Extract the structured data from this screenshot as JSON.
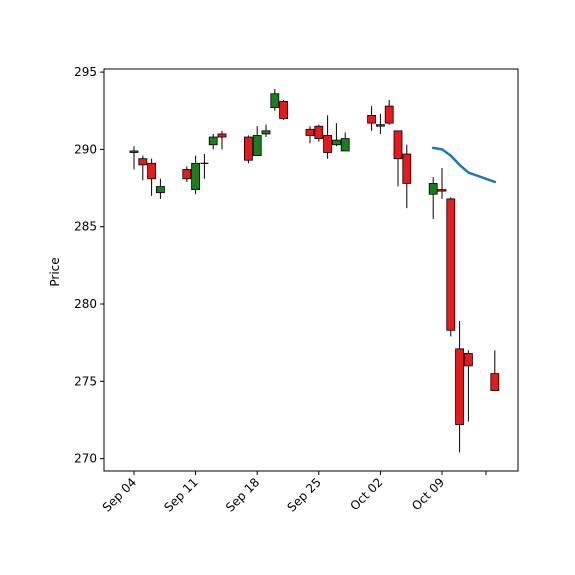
{
  "chart_data": {
    "type": "candlestick",
    "ylabel": "Price",
    "xlabel": "",
    "ylim": [
      269.2,
      295.2
    ],
    "y_ticks": [
      270,
      275,
      280,
      285,
      290,
      295
    ],
    "x_ticks": [
      {
        "label": "Sep 04",
        "date": "2018-09-04"
      },
      {
        "label": "Sep 11",
        "date": "2018-09-11"
      },
      {
        "label": "Sep 18",
        "date": "2018-09-18"
      },
      {
        "label": "Sep 25",
        "date": "2018-09-25"
      },
      {
        "label": "Oct 02",
        "date": "2018-10-02"
      },
      {
        "label": "Oct 09",
        "date": "2018-10-09"
      },
      {
        "label": "",
        "date": "2018-10-14"
      }
    ],
    "grid": false,
    "colors": {
      "up": "#1a7f1a",
      "down": "#e8191b",
      "doji": "#000000",
      "edge": "#000000",
      "ma_line": "#1f77b4"
    },
    "candles": [
      {
        "date": "2018-09-04",
        "open": 289.9,
        "high": 290.2,
        "low": 288.7,
        "close": 289.8
      },
      {
        "date": "2018-09-05",
        "open": 289.4,
        "high": 289.6,
        "low": 288.0,
        "close": 289.0
      },
      {
        "date": "2018-09-06",
        "open": 289.1,
        "high": 289.4,
        "low": 287.0,
        "close": 288.1
      },
      {
        "date": "2018-09-07",
        "open": 287.2,
        "high": 288.1,
        "low": 286.8,
        "close": 287.6
      },
      {
        "date": "2018-09-10",
        "open": 288.7,
        "high": 288.9,
        "low": 287.9,
        "close": 288.1
      },
      {
        "date": "2018-09-11",
        "open": 287.4,
        "high": 289.6,
        "low": 287.1,
        "close": 289.1
      },
      {
        "date": "2018-09-12",
        "open": 289.1,
        "high": 289.7,
        "low": 288.1,
        "close": 289.1
      },
      {
        "date": "2018-09-13",
        "open": 290.3,
        "high": 291.0,
        "low": 290.0,
        "close": 290.8
      },
      {
        "date": "2018-09-14",
        "open": 291.0,
        "high": 291.2,
        "low": 290.0,
        "close": 290.8
      },
      {
        "date": "2018-09-17",
        "open": 290.8,
        "high": 290.9,
        "low": 289.1,
        "close": 289.3
      },
      {
        "date": "2018-09-18",
        "open": 289.6,
        "high": 291.5,
        "low": 289.6,
        "close": 290.9
      },
      {
        "date": "2018-09-19",
        "open": 291.0,
        "high": 291.6,
        "low": 290.8,
        "close": 291.2
      },
      {
        "date": "2018-09-20",
        "open": 292.7,
        "high": 293.9,
        "low": 292.5,
        "close": 293.6
      },
      {
        "date": "2018-09-21",
        "open": 293.1,
        "high": 293.2,
        "low": 291.9,
        "close": 292.0
      },
      {
        "date": "2018-09-24",
        "open": 291.3,
        "high": 291.5,
        "low": 290.4,
        "close": 290.9
      },
      {
        "date": "2018-09-25",
        "open": 291.5,
        "high": 291.6,
        "low": 290.5,
        "close": 290.7
      },
      {
        "date": "2018-09-26",
        "open": 290.9,
        "high": 292.2,
        "low": 289.4,
        "close": 289.8
      },
      {
        "date": "2018-09-27",
        "open": 290.3,
        "high": 291.7,
        "low": 290.2,
        "close": 290.6
      },
      {
        "date": "2018-09-28",
        "open": 289.9,
        "high": 291.1,
        "low": 289.9,
        "close": 290.7
      },
      {
        "date": "2018-10-01",
        "open": 292.2,
        "high": 292.8,
        "low": 291.2,
        "close": 291.7
      },
      {
        "date": "2018-10-02",
        "open": 291.6,
        "high": 292.3,
        "low": 291.0,
        "close": 291.5
      },
      {
        "date": "2018-10-03",
        "open": 292.8,
        "high": 293.2,
        "low": 291.6,
        "close": 291.7
      },
      {
        "date": "2018-10-04",
        "open": 291.2,
        "high": 291.2,
        "low": 287.6,
        "close": 289.4
      },
      {
        "date": "2018-10-05",
        "open": 289.7,
        "high": 290.3,
        "low": 286.2,
        "close": 287.8
      },
      {
        "date": "2018-10-08",
        "open": 287.1,
        "high": 288.2,
        "low": 285.5,
        "close": 287.8
      },
      {
        "date": "2018-10-09",
        "open": 287.4,
        "high": 288.8,
        "low": 286.8,
        "close": 287.3
      },
      {
        "date": "2018-10-10",
        "open": 286.8,
        "high": 286.9,
        "low": 277.9,
        "close": 278.3
      },
      {
        "date": "2018-10-11",
        "open": 277.1,
        "high": 278.9,
        "low": 270.4,
        "close": 272.2
      },
      {
        "date": "2018-10-12",
        "open": 276.8,
        "high": 277.0,
        "low": 272.4,
        "close": 276.0
      },
      {
        "date": "2018-10-15",
        "open": 275.5,
        "high": 277.0,
        "low": 274.4,
        "close": 274.4
      }
    ],
    "ma_series": {
      "dates": [
        "2018-10-08",
        "2018-10-09",
        "2018-10-10",
        "2018-10-11",
        "2018-10-12",
        "2018-10-15"
      ],
      "values": [
        290.1,
        290.0,
        289.6,
        289.0,
        288.5,
        287.9
      ]
    }
  }
}
